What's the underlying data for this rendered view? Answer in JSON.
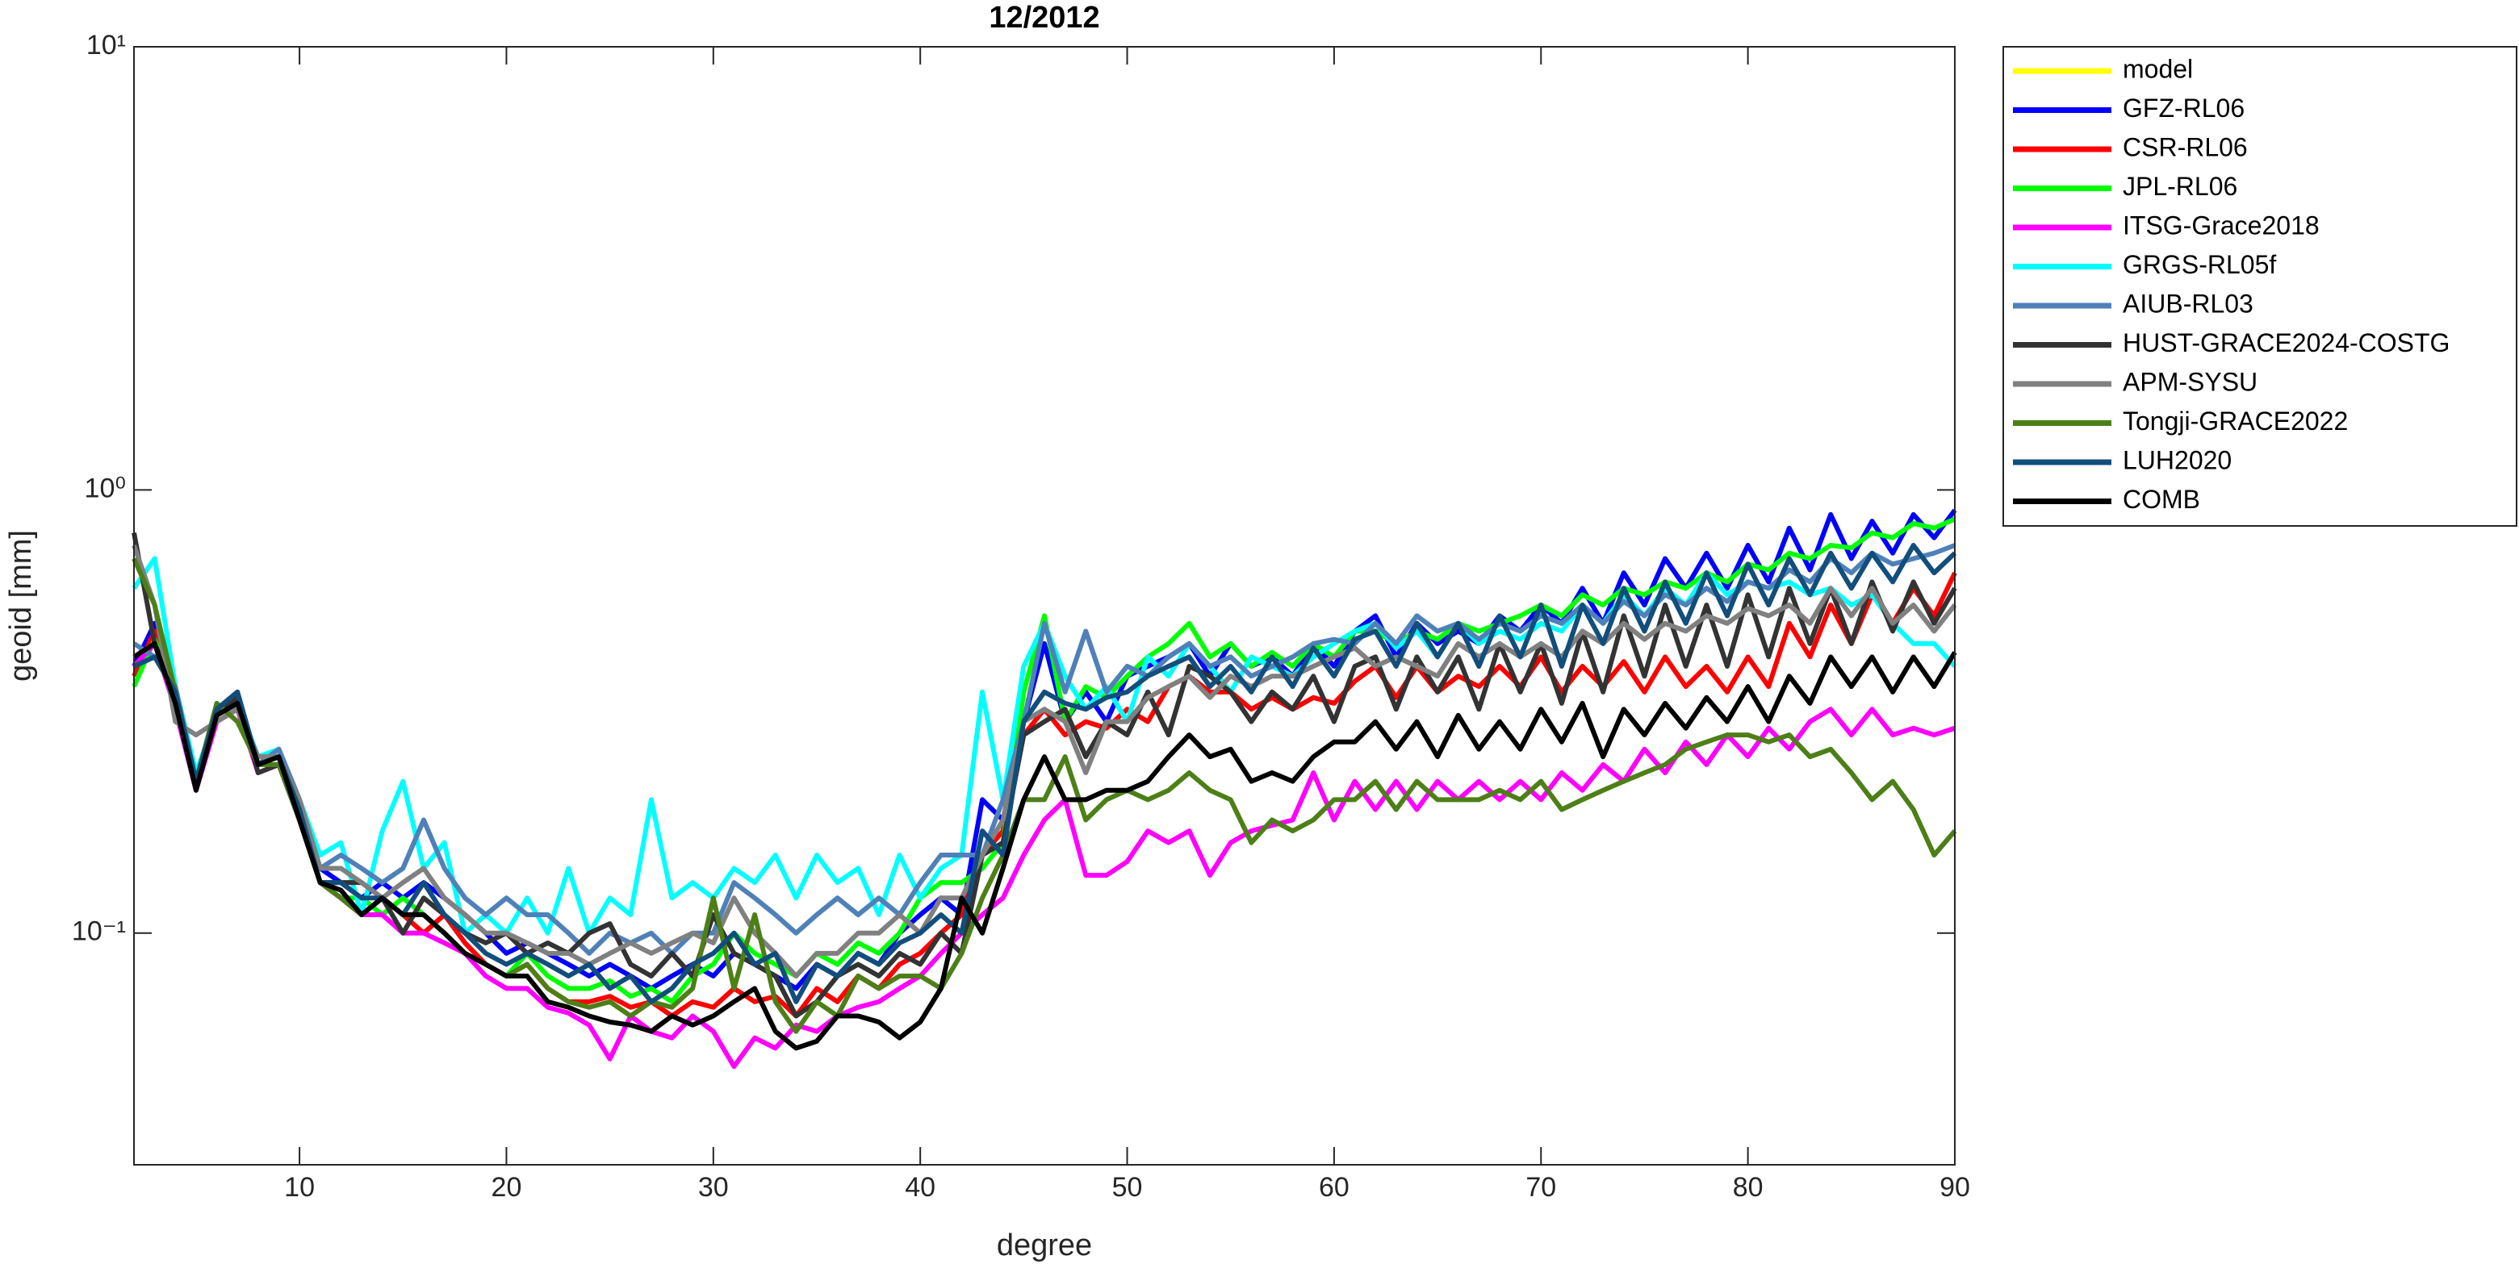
{
  "chart_data": {
    "type": "line",
    "title": "12/2012",
    "xlabel": "degree",
    "ylabel": "geoid [mm]",
    "yscale": "log",
    "grid": false,
    "legend": "outside-right",
    "xlim": [
      2,
      90
    ],
    "xticks": [
      10,
      20,
      30,
      40,
      50,
      60,
      70,
      80,
      90
    ],
    "ylim": [
      0.03,
      10
    ],
    "yticks": [
      {
        "value": 0.1,
        "label": "10⁻¹"
      },
      {
        "value": 1,
        "label": "10⁰"
      },
      {
        "value": 10,
        "label": "10¹"
      }
    ],
    "x": [
      2,
      3,
      4,
      5,
      6,
      7,
      8,
      9,
      10,
      11,
      12,
      13,
      14,
      15,
      16,
      17,
      18,
      19,
      20,
      21,
      22,
      23,
      24,
      25,
      26,
      27,
      28,
      29,
      30,
      31,
      32,
      33,
      34,
      35,
      36,
      37,
      38,
      39,
      40,
      41,
      42,
      43,
      44,
      45,
      46,
      47,
      48,
      49,
      50,
      51,
      52,
      53,
      54,
      55,
      56,
      57,
      58,
      59,
      60,
      61,
      62,
      63,
      64,
      65,
      66,
      67,
      68,
      69,
      70,
      71,
      72,
      73,
      74,
      75,
      76,
      77,
      78,
      79,
      80,
      81,
      82,
      83,
      84,
      85,
      86,
      87,
      88,
      89,
      90
    ],
    "series": [
      {
        "name": "model",
        "color": "#ffff00",
        "values": [
          null,
          null,
          null,
          null,
          null,
          null,
          null,
          null,
          null,
          null,
          null,
          null,
          null,
          null,
          null,
          null,
          null,
          null,
          null,
          null,
          null,
          null,
          null,
          null,
          null,
          null,
          null,
          null,
          null,
          null,
          null,
          null,
          null,
          null,
          null,
          null,
          null,
          null,
          null,
          null,
          null,
          null,
          null,
          null,
          null,
          null,
          null,
          null,
          null,
          null,
          null,
          null,
          null,
          null,
          null,
          null,
          null,
          null,
          null,
          null,
          null,
          null,
          null,
          null,
          null,
          null,
          null,
          null,
          null,
          null,
          null,
          null,
          null,
          null,
          null,
          null,
          null,
          null,
          null,
          null,
          null,
          null,
          null,
          null,
          null,
          null,
          null,
          null,
          null
        ]
      },
      {
        "name": "GFZ-RL06",
        "color": "#0000ff",
        "values": [
          0.4,
          0.5,
          0.35,
          0.22,
          0.32,
          0.34,
          0.24,
          0.26,
          0.2,
          0.14,
          0.13,
          0.12,
          0.13,
          0.12,
          0.13,
          0.12,
          0.11,
          0.1,
          0.09,
          0.095,
          0.09,
          0.085,
          0.08,
          0.085,
          0.08,
          0.075,
          0.08,
          0.085,
          0.08,
          0.09,
          0.085,
          0.08,
          0.075,
          0.085,
          0.08,
          0.09,
          0.085,
          0.1,
          0.11,
          0.12,
          0.11,
          0.2,
          0.18,
          0.3,
          0.45,
          0.3,
          0.35,
          0.3,
          0.38,
          0.4,
          0.42,
          0.45,
          0.38,
          0.45,
          0.4,
          0.42,
          0.38,
          0.45,
          0.4,
          0.48,
          0.52,
          0.42,
          0.5,
          0.45,
          0.48,
          0.45,
          0.52,
          0.48,
          0.55,
          0.5,
          0.6,
          0.5,
          0.65,
          0.55,
          0.7,
          0.6,
          0.72,
          0.6,
          0.75,
          0.62,
          0.82,
          0.66,
          0.88,
          0.7,
          0.85,
          0.72,
          0.88,
          0.78,
          0.9
        ]
      },
      {
        "name": "CSR-RL06",
        "color": "#ff0000",
        "values": [
          0.38,
          0.48,
          0.34,
          0.22,
          0.31,
          0.33,
          0.24,
          0.25,
          0.19,
          0.13,
          0.12,
          0.11,
          0.12,
          0.11,
          0.1,
          0.11,
          0.095,
          0.085,
          0.08,
          0.085,
          0.075,
          0.07,
          0.07,
          0.072,
          0.068,
          0.07,
          0.065,
          0.07,
          0.068,
          0.075,
          0.07,
          0.072,
          0.065,
          0.075,
          0.07,
          0.08,
          0.075,
          0.085,
          0.09,
          0.1,
          0.11,
          0.15,
          0.17,
          0.28,
          0.32,
          0.28,
          0.3,
          0.29,
          0.32,
          0.3,
          0.36,
          0.38,
          0.35,
          0.35,
          0.32,
          0.34,
          0.32,
          0.34,
          0.33,
          0.37,
          0.4,
          0.34,
          0.4,
          0.35,
          0.38,
          0.36,
          0.4,
          0.36,
          0.42,
          0.35,
          0.4,
          0.36,
          0.41,
          0.35,
          0.42,
          0.36,
          0.4,
          0.35,
          0.42,
          0.36,
          0.5,
          0.42,
          0.55,
          0.45,
          0.58,
          0.5,
          0.6,
          0.52,
          0.65
        ]
      },
      {
        "name": "JPL-RL06",
        "color": "#00ff00",
        "values": [
          0.36,
          0.46,
          0.34,
          0.22,
          0.32,
          0.33,
          0.24,
          0.25,
          0.19,
          0.13,
          0.12,
          0.12,
          0.11,
          0.12,
          0.11,
          0.1,
          0.09,
          0.085,
          0.08,
          0.09,
          0.08,
          0.075,
          0.075,
          0.078,
          0.072,
          0.075,
          0.07,
          0.08,
          0.085,
          0.1,
          0.09,
          0.085,
          0.08,
          0.09,
          0.085,
          0.095,
          0.09,
          0.1,
          0.12,
          0.13,
          0.13,
          0.14,
          0.16,
          0.35,
          0.52,
          0.3,
          0.36,
          0.34,
          0.38,
          0.42,
          0.45,
          0.5,
          0.42,
          0.45,
          0.4,
          0.43,
          0.4,
          0.45,
          0.42,
          0.48,
          0.48,
          0.45,
          0.48,
          0.46,
          0.5,
          0.48,
          0.5,
          0.52,
          0.55,
          0.52,
          0.58,
          0.55,
          0.6,
          0.58,
          0.62,
          0.6,
          0.65,
          0.62,
          0.68,
          0.66,
          0.72,
          0.7,
          0.75,
          0.74,
          0.8,
          0.78,
          0.84,
          0.82,
          0.86
        ]
      },
      {
        "name": "ITSG-Grace2018",
        "color": "#ff00ff",
        "values": [
          0.4,
          0.45,
          0.32,
          0.21,
          0.3,
          0.32,
          0.23,
          0.24,
          0.18,
          0.13,
          0.12,
          0.11,
          0.11,
          0.1,
          0.1,
          0.095,
          0.09,
          0.08,
          0.075,
          0.075,
          0.068,
          0.066,
          0.062,
          0.052,
          0.065,
          0.06,
          0.058,
          0.065,
          0.06,
          0.05,
          0.058,
          0.055,
          0.062,
          0.06,
          0.065,
          0.068,
          0.07,
          0.075,
          0.08,
          0.09,
          0.1,
          0.11,
          0.12,
          0.15,
          0.18,
          0.2,
          0.135,
          0.135,
          0.145,
          0.17,
          0.16,
          0.17,
          0.135,
          0.16,
          0.17,
          0.175,
          0.18,
          0.23,
          0.18,
          0.22,
          0.19,
          0.22,
          0.19,
          0.22,
          0.2,
          0.22,
          0.2,
          0.22,
          0.2,
          0.23,
          0.21,
          0.24,
          0.22,
          0.26,
          0.23,
          0.27,
          0.24,
          0.28,
          0.25,
          0.29,
          0.26,
          0.3,
          0.32,
          0.28,
          0.32,
          0.28,
          0.29,
          0.28,
          0.29
        ]
      },
      {
        "name": "GRGS-RL05f",
        "color": "#00ffff",
        "values": [
          0.6,
          0.7,
          0.36,
          0.23,
          0.31,
          0.33,
          0.25,
          0.26,
          0.2,
          0.15,
          0.16,
          0.11,
          0.17,
          0.22,
          0.14,
          0.16,
          0.1,
          0.11,
          0.1,
          0.12,
          0.1,
          0.14,
          0.1,
          0.12,
          0.11,
          0.2,
          0.12,
          0.13,
          0.12,
          0.14,
          0.13,
          0.15,
          0.12,
          0.15,
          0.13,
          0.14,
          0.11,
          0.15,
          0.12,
          0.14,
          0.15,
          0.35,
          0.2,
          0.4,
          0.5,
          0.38,
          0.32,
          0.36,
          0.3,
          0.42,
          0.38,
          0.45,
          0.4,
          0.35,
          0.42,
          0.4,
          0.38,
          0.42,
          0.45,
          0.48,
          0.5,
          0.44,
          0.48,
          0.42,
          0.5,
          0.45,
          0.48,
          0.46,
          0.5,
          0.48,
          0.55,
          0.5,
          0.58,
          0.52,
          0.6,
          0.55,
          0.65,
          0.58,
          0.62,
          0.6,
          0.62,
          0.58,
          0.6,
          0.55,
          0.58,
          0.5,
          0.45,
          0.45,
          0.4
        ]
      },
      {
        "name": "AIUB-RL03",
        "color": "#4f81b8",
        "values": [
          0.45,
          0.42,
          0.36,
          0.22,
          0.32,
          0.35,
          0.24,
          0.26,
          0.2,
          0.14,
          0.15,
          0.14,
          0.13,
          0.14,
          0.18,
          0.14,
          0.12,
          0.11,
          0.12,
          0.11,
          0.11,
          0.1,
          0.09,
          0.1,
          0.095,
          0.1,
          0.09,
          0.1,
          0.1,
          0.13,
          0.12,
          0.11,
          0.1,
          0.11,
          0.12,
          0.11,
          0.12,
          0.11,
          0.13,
          0.15,
          0.15,
          0.15,
          0.2,
          0.3,
          0.5,
          0.35,
          0.48,
          0.35,
          0.4,
          0.38,
          0.42,
          0.45,
          0.4,
          0.42,
          0.38,
          0.4,
          0.42,
          0.45,
          0.46,
          0.45,
          0.5,
          0.45,
          0.52,
          0.48,
          0.5,
          0.46,
          0.5,
          0.48,
          0.52,
          0.5,
          0.55,
          0.5,
          0.56,
          0.52,
          0.58,
          0.55,
          0.6,
          0.56,
          0.62,
          0.6,
          0.66,
          0.62,
          0.7,
          0.65,
          0.72,
          0.68,
          0.7,
          0.72,
          0.75
        ]
      },
      {
        "name": "HUST-GRACE2024-COSTG",
        "color": "#333333",
        "values": [
          0.8,
          0.45,
          0.35,
          0.22,
          0.31,
          0.34,
          0.23,
          0.24,
          0.18,
          0.13,
          0.13,
          0.13,
          0.12,
          0.1,
          0.12,
          0.11,
          0.1,
          0.095,
          0.1,
          0.09,
          0.095,
          0.09,
          0.1,
          0.105,
          0.085,
          0.08,
          0.09,
          0.08,
          0.11,
          0.09,
          0.085,
          0.08,
          0.065,
          0.07,
          0.08,
          0.085,
          0.08,
          0.09,
          0.085,
          0.1,
          0.09,
          0.15,
          0.16,
          0.28,
          0.3,
          0.32,
          0.25,
          0.3,
          0.28,
          0.35,
          0.28,
          0.4,
          0.38,
          0.35,
          0.3,
          0.35,
          0.32,
          0.38,
          0.3,
          0.4,
          0.42,
          0.32,
          0.42,
          0.35,
          0.42,
          0.32,
          0.45,
          0.35,
          0.45,
          0.33,
          0.48,
          0.35,
          0.52,
          0.38,
          0.55,
          0.4,
          0.55,
          0.4,
          0.58,
          0.42,
          0.6,
          0.45,
          0.6,
          0.45,
          0.62,
          0.48,
          0.62,
          0.5,
          0.6
        ]
      },
      {
        "name": "APM-SYSU",
        "color": "#808080",
        "values": [
          0.75,
          0.55,
          0.3,
          0.28,
          0.3,
          0.32,
          0.25,
          0.25,
          0.2,
          0.14,
          0.14,
          0.13,
          0.12,
          0.13,
          0.14,
          0.12,
          0.11,
          0.1,
          0.1,
          0.095,
          0.09,
          0.09,
          0.085,
          0.09,
          0.095,
          0.09,
          0.095,
          0.1,
          0.095,
          0.12,
          0.1,
          0.09,
          0.08,
          0.09,
          0.09,
          0.1,
          0.1,
          0.11,
          0.1,
          0.12,
          0.12,
          0.15,
          0.18,
          0.3,
          0.32,
          0.3,
          0.23,
          0.3,
          0.3,
          0.34,
          0.36,
          0.38,
          0.34,
          0.38,
          0.36,
          0.38,
          0.38,
          0.4,
          0.42,
          0.44,
          0.4,
          0.42,
          0.4,
          0.38,
          0.45,
          0.42,
          0.45,
          0.42,
          0.45,
          0.42,
          0.48,
          0.45,
          0.5,
          0.46,
          0.5,
          0.48,
          0.52,
          0.5,
          0.54,
          0.52,
          0.55,
          0.5,
          0.6,
          0.52,
          0.6,
          0.5,
          0.55,
          0.48,
          0.55
        ]
      },
      {
        "name": "Tongji-GRACE2022",
        "color": "#4d7f17",
        "values": [
          0.7,
          0.55,
          0.35,
          0.22,
          0.33,
          0.3,
          0.24,
          0.24,
          0.18,
          0.13,
          0.12,
          0.11,
          0.12,
          0.11,
          0.11,
          0.1,
          0.09,
          0.085,
          0.08,
          0.085,
          0.075,
          0.07,
          0.068,
          0.07,
          0.065,
          0.07,
          0.068,
          0.075,
          0.12,
          0.075,
          0.11,
          0.07,
          0.06,
          0.07,
          0.065,
          0.08,
          0.075,
          0.08,
          0.08,
          0.075,
          0.09,
          0.12,
          0.15,
          0.2,
          0.2,
          0.25,
          0.18,
          0.2,
          0.21,
          0.2,
          0.21,
          0.23,
          0.21,
          0.2,
          0.16,
          0.18,
          0.17,
          0.18,
          0.2,
          0.2,
          0.22,
          0.19,
          0.22,
          0.2,
          0.2,
          0.2,
          0.21,
          0.2,
          0.22,
          0.19,
          0.2,
          0.21,
          0.22,
          0.23,
          0.24,
          0.26,
          0.27,
          0.28,
          0.28,
          0.27,
          0.28,
          0.25,
          0.26,
          0.23,
          0.2,
          0.22,
          0.19,
          0.15,
          0.17
        ]
      },
      {
        "name": "LUH2020",
        "color": "#124e7c",
        "values": [
          0.4,
          0.42,
          0.35,
          0.22,
          0.32,
          0.35,
          0.24,
          0.25,
          0.19,
          0.13,
          0.13,
          0.12,
          0.12,
          0.11,
          0.13,
          0.11,
          0.1,
          0.09,
          0.085,
          0.09,
          0.085,
          0.08,
          0.085,
          0.075,
          0.08,
          0.07,
          0.075,
          0.085,
          0.09,
          0.1,
          0.085,
          0.09,
          0.07,
          0.085,
          0.08,
          0.09,
          0.085,
          0.095,
          0.1,
          0.11,
          0.1,
          0.17,
          0.15,
          0.3,
          0.35,
          0.33,
          0.32,
          0.34,
          0.35,
          0.38,
          0.4,
          0.42,
          0.36,
          0.4,
          0.35,
          0.42,
          0.36,
          0.44,
          0.38,
          0.46,
          0.48,
          0.4,
          0.5,
          0.42,
          0.5,
          0.4,
          0.52,
          0.42,
          0.55,
          0.4,
          0.55,
          0.45,
          0.6,
          0.48,
          0.62,
          0.5,
          0.65,
          0.52,
          0.68,
          0.55,
          0.7,
          0.58,
          0.72,
          0.6,
          0.72,
          0.62,
          0.75,
          0.65,
          0.72
        ]
      },
      {
        "name": "COMB",
        "color": "#000000",
        "values": [
          0.42,
          0.45,
          0.33,
          0.21,
          0.31,
          0.33,
          0.24,
          0.25,
          0.18,
          0.13,
          0.125,
          0.11,
          0.12,
          0.11,
          0.11,
          0.1,
          0.09,
          0.085,
          0.08,
          0.08,
          0.07,
          0.068,
          0.065,
          0.063,
          0.062,
          0.06,
          0.065,
          0.062,
          0.065,
          0.07,
          0.075,
          0.06,
          0.055,
          0.057,
          0.065,
          0.065,
          0.063,
          0.058,
          0.063,
          0.075,
          0.12,
          0.1,
          0.14,
          0.2,
          0.25,
          0.2,
          0.2,
          0.21,
          0.21,
          0.22,
          0.25,
          0.28,
          0.25,
          0.26,
          0.22,
          0.23,
          0.22,
          0.25,
          0.27,
          0.27,
          0.3,
          0.26,
          0.3,
          0.25,
          0.31,
          0.26,
          0.3,
          0.26,
          0.32,
          0.27,
          0.33,
          0.25,
          0.32,
          0.28,
          0.33,
          0.29,
          0.34,
          0.3,
          0.36,
          0.3,
          0.38,
          0.33,
          0.42,
          0.36,
          0.42,
          0.35,
          0.42,
          0.36,
          0.43
        ]
      }
    ]
  }
}
